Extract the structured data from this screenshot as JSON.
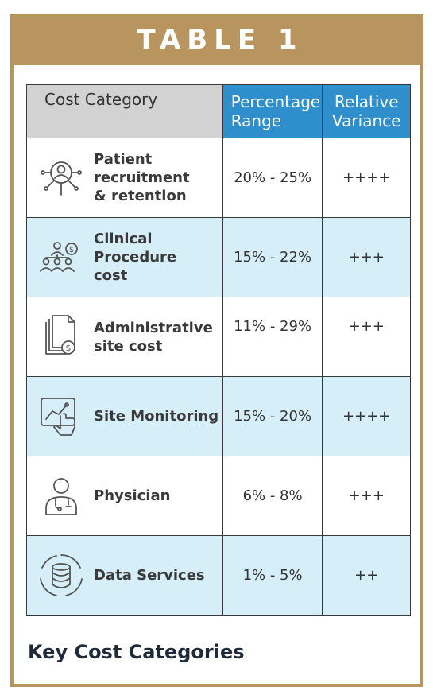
{
  "banner": {
    "title": "TABLE 1"
  },
  "table": {
    "headers": {
      "category": "Cost Category",
      "percentage": "Percentage\nRange",
      "variance": "Relative\nVariance"
    },
    "rows": [
      {
        "icon": "person-search-icon",
        "category": "Patient\nrecruitment\n& retention",
        "percentage": "20% - 25%",
        "variance": "++++"
      },
      {
        "icon": "team-cost-icon",
        "category": "Clinical\nProcedure\ncost",
        "percentage": "15% - 22%",
        "variance": "+++"
      },
      {
        "icon": "documents-dollar-icon",
        "category": "Administrative\nsite cost",
        "percentage": "11% - 29%",
        "variance": "+++"
      },
      {
        "icon": "touch-chart-icon",
        "category": "Site Monitoring",
        "percentage": "15% - 20%",
        "variance": "++++"
      },
      {
        "icon": "doctor-icon",
        "category": "Physician",
        "percentage": "6% - 8%",
        "variance": "+++"
      },
      {
        "icon": "database-cycle-icon",
        "category": "Data Services",
        "percentage": "1% - 5%",
        "variance": "++"
      }
    ]
  },
  "caption": "Key Cost Categories",
  "colors": {
    "gold": "#b8955f",
    "header_blue": "#2f8fcc",
    "row_tint": "#d6eef8",
    "header_gray": "#d2d2d2"
  }
}
